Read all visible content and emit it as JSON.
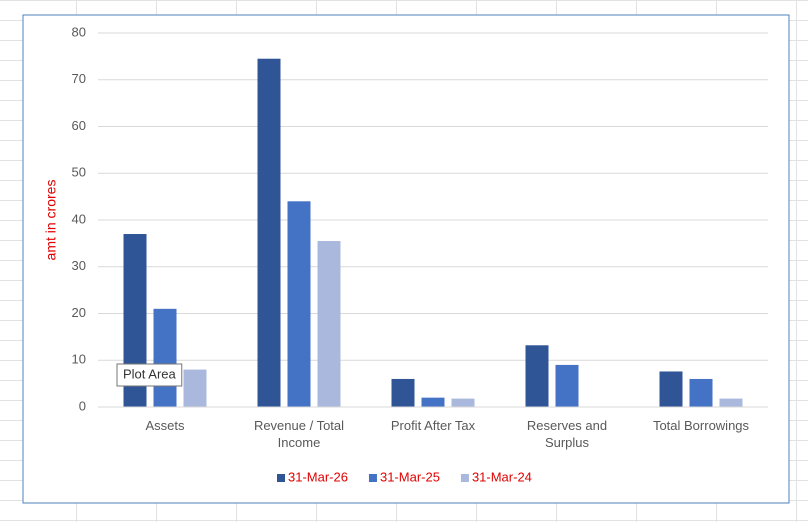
{
  "chart_data": {
    "type": "bar",
    "y_label": "amt in crores",
    "categories": [
      "Assets",
      "Revenue / Total Income",
      "Profit After Tax",
      "Reserves and Surplus",
      "Total Borrowings"
    ],
    "series": [
      {
        "name": "31-Mar-26",
        "color": "#2f5597",
        "values": [
          37,
          74.5,
          6,
          13.2,
          7.6
        ]
      },
      {
        "name": "31-Mar-25",
        "color": "#4472c4",
        "values": [
          21,
          44,
          2,
          9,
          6
        ]
      },
      {
        "name": "31-Mar-24",
        "color": "#a9b8dc",
        "values": [
          8,
          35.5,
          1.8,
          0,
          1.8
        ]
      }
    ],
    "ylim": [
      0,
      80
    ],
    "yticks": [
      0,
      10,
      20,
      30,
      40,
      50,
      60,
      70,
      80
    ],
    "grid": true,
    "legend": "bottom",
    "tooltip": "Plot Area"
  }
}
